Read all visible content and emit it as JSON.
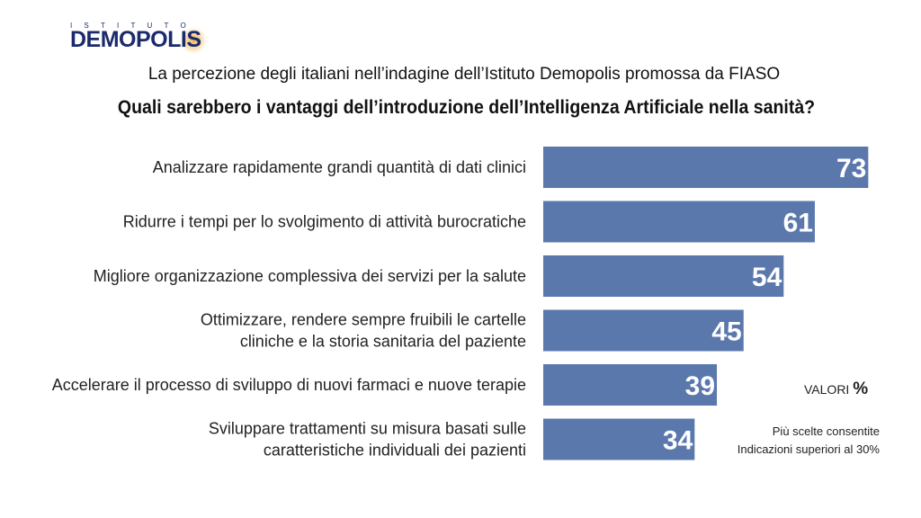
{
  "logo": {
    "small": "ISTITUTO",
    "big": "DEMOPOLIS"
  },
  "header": {
    "subtitle": "La percezione degli italiani nell’indagine dell’Istituto Demopolis promossa da FIASO",
    "title": "Quali sarebbero i vantaggi dell’introduzione dell’Intelligenza Artificiale nella sanità?"
  },
  "chart_data": {
    "type": "bar",
    "orientation": "horizontal",
    "categories": [
      [
        "Analizzare rapidamente grandi quantità di dati clinici"
      ],
      [
        "Ridurre i tempi per lo svolgimento di attività burocratiche"
      ],
      [
        "Migliore organizzazione complessiva dei servizi per la salute"
      ],
      [
        "Ottimizzare, rendere sempre fruibili le cartelle",
        "cliniche e la storia sanitaria del paziente"
      ],
      [
        "Accelerare il processo di sviluppo di nuovi farmaci e nuove terapie"
      ],
      [
        "Sviluppare trattamenti su misura basati sulle",
        "caratteristiche individuali dei pazienti"
      ]
    ],
    "values": [
      73,
      61,
      54,
      45,
      39,
      34
    ],
    "bar_color": "#5b78ad",
    "title": "",
    "xlabel": "",
    "ylabel": "",
    "xlim": [
      0,
      100
    ],
    "grid": false,
    "legend": "none"
  },
  "notes": {
    "unit_label": "VALORI",
    "unit_symbol": "%",
    "line1": "Più scelte consentite",
    "line2": "Indicazioni superiori al 30%"
  }
}
